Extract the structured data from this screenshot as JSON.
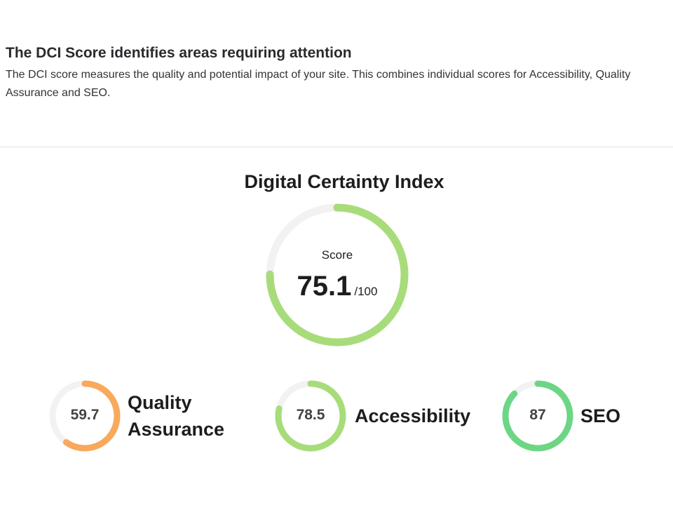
{
  "header": {
    "title": "The DCI Score identifies areas requiring attention",
    "description": "The DCI score measures the quality and potential impact of your site. This combines individual scores for Accessibility, Quality Assurance and SEO."
  },
  "dci": {
    "title": "Digital Certainty Index",
    "score_label": "Score",
    "score": "75.1",
    "max": "/100",
    "value": 75.1,
    "color": "#a8dc7a"
  },
  "track_color": "#f2f2f2",
  "scores": [
    {
      "value_text": "59.7",
      "value": 59.7,
      "name_line1": "Quality",
      "name_line2": "Assurance",
      "color": "#f8a95b"
    },
    {
      "value_text": "78.5",
      "value": 78.5,
      "name_line1": "Accessibility",
      "name_line2": "",
      "color": "#a8dc7a"
    },
    {
      "value_text": "87",
      "value": 87,
      "name_line1": "SEO",
      "name_line2": "",
      "color": "#6dd685"
    }
  ]
}
